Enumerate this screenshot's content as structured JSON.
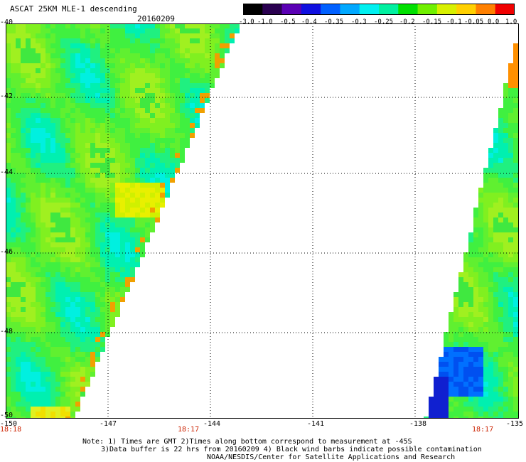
{
  "header": {
    "title": "ASCAT 25KM MLE-1 descending",
    "date": "20160209"
  },
  "colorbar": {
    "labels": [
      "-3.0",
      "-1.0",
      "-0.5",
      "-0.4",
      "-0.35",
      "-0.3",
      "-0.25",
      "-0.2",
      "-0.15",
      "-0.1",
      "-0.05",
      "0.0",
      "1.0"
    ],
    "colors": [
      "#000000",
      "#2a0050",
      "#5a00b4",
      "#1010e0",
      "#0060ff",
      "#00a8ff",
      "#00f0f0",
      "#00f0a0",
      "#00e000",
      "#70f000",
      "#d8f000",
      "#ffd000",
      "#ff8000",
      "#f00000"
    ]
  },
  "map": {
    "lat_labels": [
      "-40",
      "-42",
      "-44",
      "-46",
      "-48",
      "-50"
    ],
    "lon_labels": [
      "-150",
      "-147",
      "-144",
      "-141",
      "-138",
      "-135"
    ],
    "time_labels": [
      "18:18",
      "18:17",
      "18:17"
    ]
  },
  "notes": {
    "line1": "Note: 1) Times are GMT 2)Times along bottom correspond to measurement at -45S",
    "line2": "3)Data buffer is 22 hrs from 20160209 4) Black wind barbs indicate possible contamination",
    "line3": "NOAA/NESDIS/Center for Satellite Applications and Research"
  }
}
